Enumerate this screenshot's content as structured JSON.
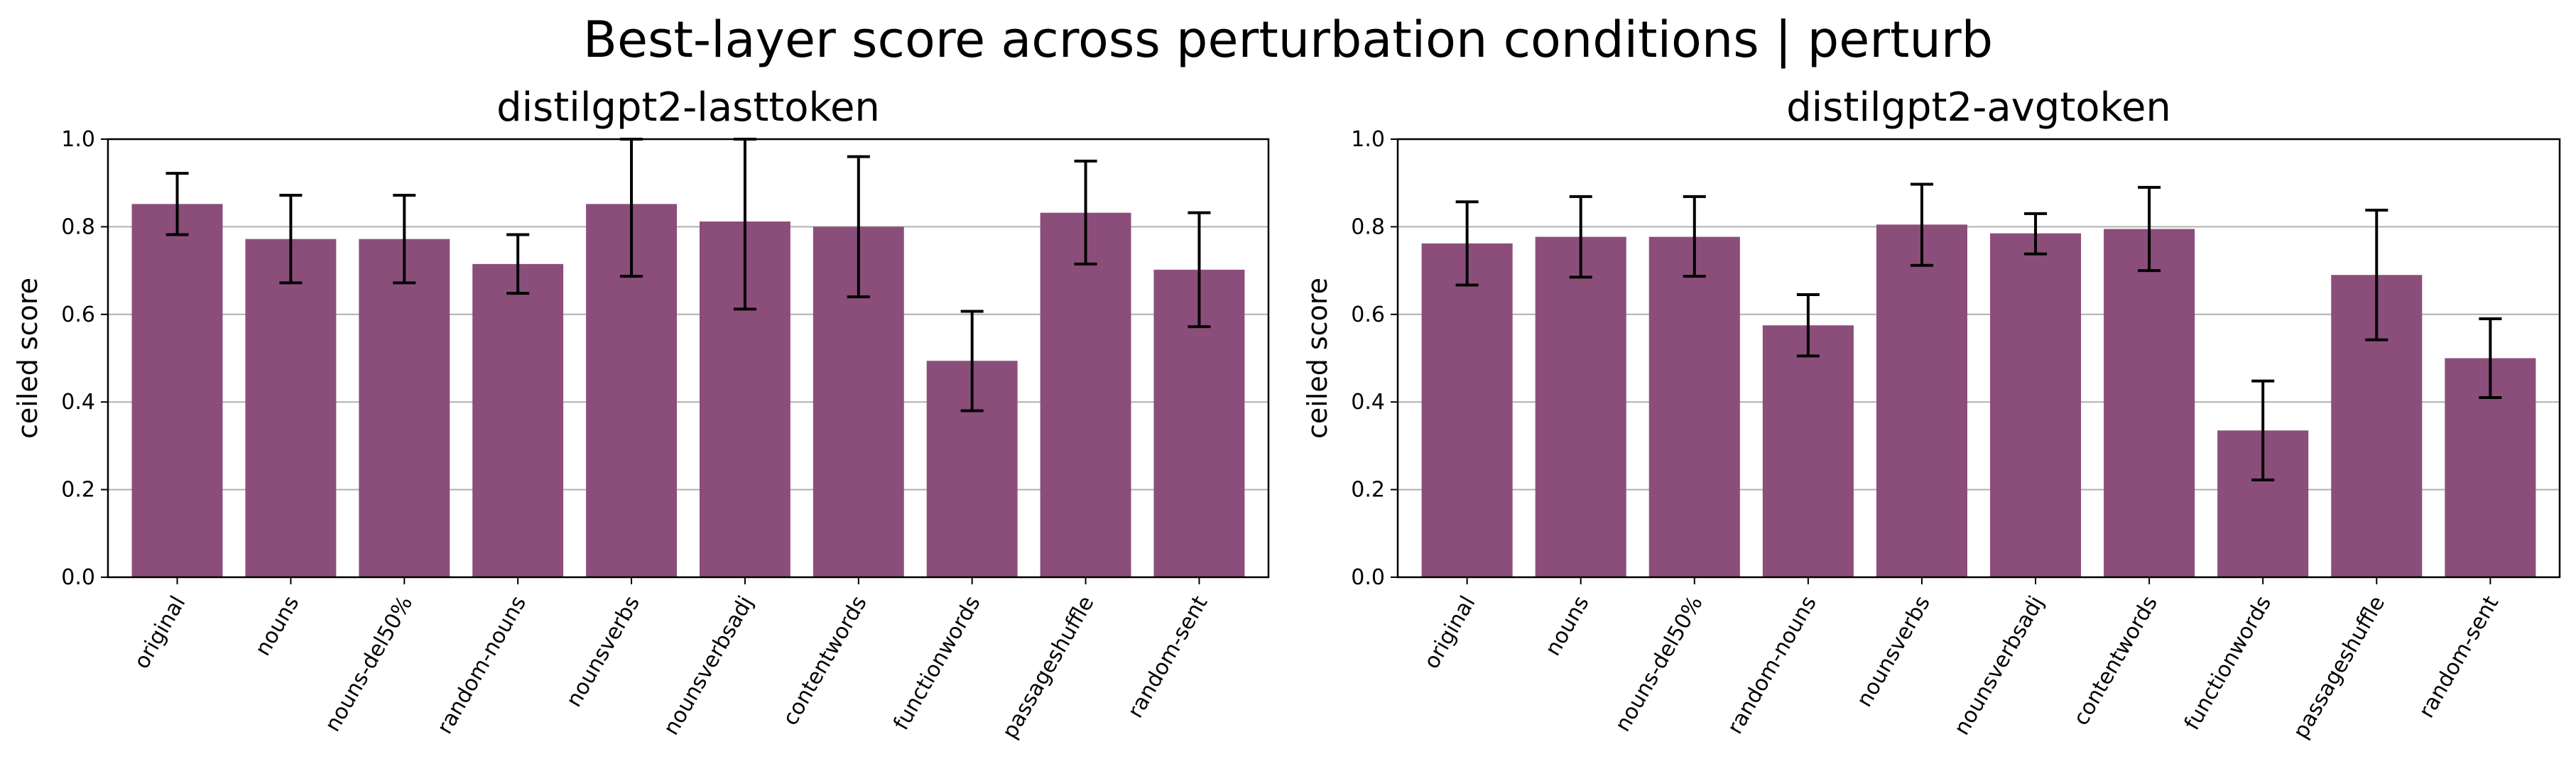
{
  "figure": {
    "title": "Best-layer score across perturbation conditions | perturb"
  },
  "chart_data": [
    {
      "type": "bar",
      "title": "distilgpt2-lasttoken",
      "xlabel": "",
      "ylabel": "ceiled score",
      "ylim": [
        0,
        1.0
      ],
      "yticks": [
        0.0,
        0.2,
        0.4,
        0.6,
        0.8,
        1.0
      ],
      "grid": "y",
      "bar_color": "#8b4e7a",
      "categories": [
        "original",
        "nouns",
        "nouns-del50%",
        "random-nouns",
        "nounsverbs",
        "nounsverbsadj",
        "contentwords",
        "functionwords",
        "passageshuffle",
        "random-sent"
      ],
      "values": [
        0.852,
        0.772,
        0.772,
        0.715,
        0.852,
        0.812,
        0.8,
        0.494,
        0.832,
        0.702
      ],
      "error_low": [
        0.782,
        0.672,
        0.672,
        0.648,
        0.687,
        0.612,
        0.64,
        0.38,
        0.715,
        0.572
      ],
      "error_high": [
        0.922,
        0.872,
        0.872,
        0.782,
        1.0,
        1.0,
        0.96,
        0.607,
        0.95,
        0.832
      ]
    },
    {
      "type": "bar",
      "title": "distilgpt2-avgtoken",
      "xlabel": "",
      "ylabel": "ceiled score",
      "ylim": [
        0,
        1.0
      ],
      "yticks": [
        0.0,
        0.2,
        0.4,
        0.6,
        0.8,
        1.0
      ],
      "grid": "y",
      "bar_color": "#8b4e7a",
      "categories": [
        "original",
        "nouns",
        "nouns-del50%",
        "random-nouns",
        "nounsverbs",
        "nounsverbsadj",
        "contentwords",
        "functionwords",
        "passageshuffle",
        "random-sent"
      ],
      "values": [
        0.762,
        0.777,
        0.777,
        0.575,
        0.805,
        0.785,
        0.795,
        0.335,
        0.69,
        0.5
      ],
      "error_low": [
        0.667,
        0.685,
        0.687,
        0.505,
        0.712,
        0.738,
        0.7,
        0.222,
        0.542,
        0.41
      ],
      "error_high": [
        0.857,
        0.869,
        0.869,
        0.645,
        0.897,
        0.83,
        0.89,
        0.448,
        0.838,
        0.59
      ]
    }
  ]
}
